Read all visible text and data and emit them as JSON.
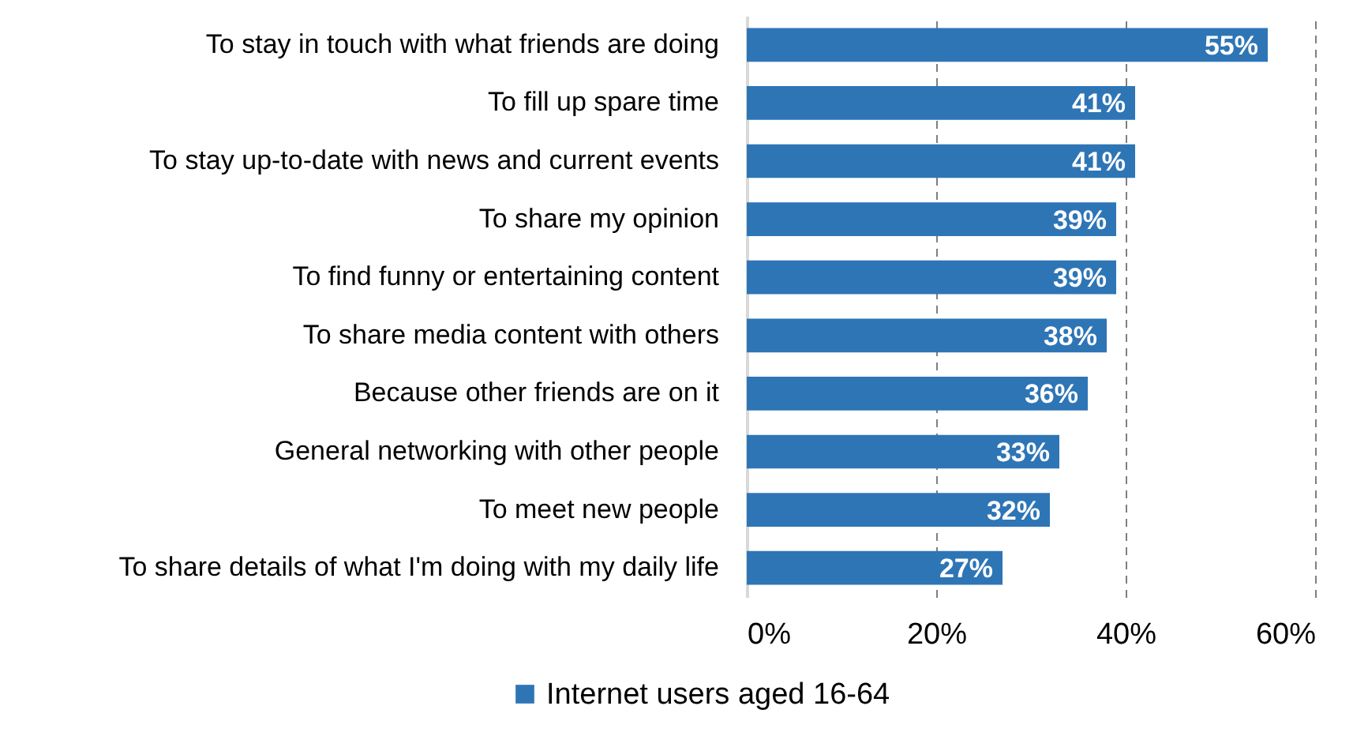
{
  "chart_data": {
    "type": "bar",
    "orientation": "horizontal",
    "categories": [
      "To stay in touch with what friends are doing",
      "To fill up spare time",
      "To stay up-to-date with news and current events",
      "To share my opinion",
      "To find funny or entertaining content",
      "To share media content with others",
      "Because other friends are on it",
      "General networking with other people",
      "To meet new people",
      "To share details of what I'm doing with my daily life"
    ],
    "series": [
      {
        "name": "Internet users aged 16-64",
        "color": "#2e75b6",
        "values": [
          55,
          41,
          41,
          39,
          39,
          38,
          36,
          33,
          32,
          27
        ],
        "value_labels": [
          "55%",
          "41%",
          "41%",
          "39%",
          "39%",
          "38%",
          "36%",
          "33%",
          "32%",
          "27%"
        ]
      }
    ],
    "xlim": [
      0,
      60
    ],
    "xticks": [
      {
        "value": 0,
        "label": "0%"
      },
      {
        "value": 20,
        "label": "20%"
      },
      {
        "value": 40,
        "label": "40%"
      },
      {
        "value": 60,
        "label": "60%"
      }
    ],
    "grid": "x",
    "legend": "bottom"
  }
}
